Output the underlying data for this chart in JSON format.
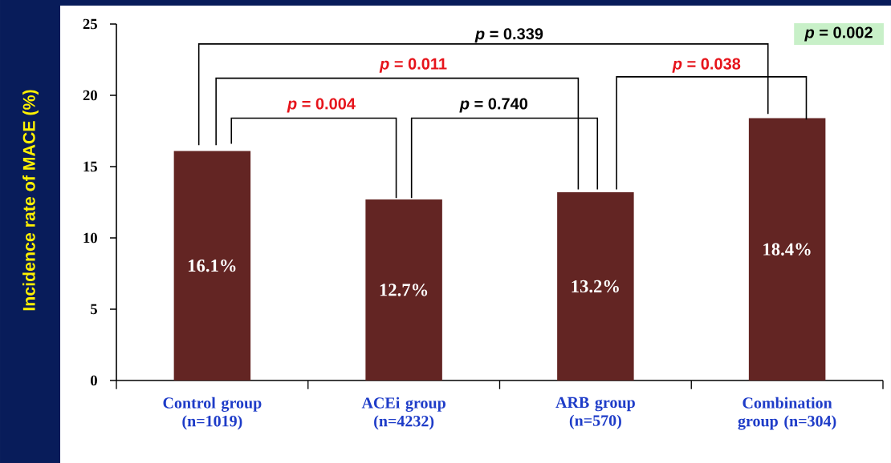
{
  "chart_data": {
    "type": "bar",
    "ylabel": "Incidence rate of MACE (%)",
    "categories": [
      "Control group (n=1019)",
      "ACEi group (n=4232)",
      "ARB group (n=570)",
      "Combination group (n=304)"
    ],
    "values": [
      16.1,
      12.7,
      13.2,
      18.4
    ],
    "value_labels": [
      "16.1%",
      "12.7%",
      "13.2%",
      "18.4%"
    ],
    "color": "#632523",
    "ylim": [
      0,
      25
    ],
    "yticks": [
      0,
      5,
      10,
      15,
      20,
      25
    ],
    "annotations": [
      "*p* = 0.339",
      "*p* = 0.011",
      "*p* = 0.004",
      "*p* = 0.740",
      "*p* = 0.038",
      "*p* = 0.002"
    ]
  }
}
